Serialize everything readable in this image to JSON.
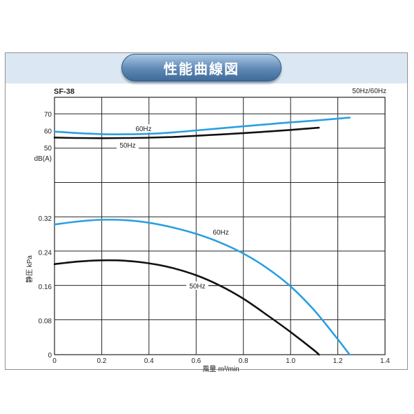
{
  "title": "性能曲線図",
  "model": "SF-38",
  "freq_note": "50Hz/60Hz",
  "colors": {
    "hz60": "#2a9fe0",
    "hz50": "#111111",
    "grid": "#222222",
    "pill": "#5e88b4",
    "band": "#dbe8f4"
  },
  "chart_data": [
    {
      "type": "line",
      "name_panel": "noise",
      "ylabel": "dB(A)",
      "yticks": [
        "70",
        "60",
        "50"
      ],
      "ylim": [
        50,
        70
      ],
      "xlim": [
        0,
        1.4
      ],
      "series": [
        {
          "name": "60Hz",
          "color": "#2a9fe0",
          "x": [
            0,
            0.1,
            0.2,
            0.3,
            0.4,
            0.5,
            0.6,
            0.7,
            0.8,
            0.9,
            1.0,
            1.1,
            1.2,
            1.25
          ],
          "y": [
            59.5,
            58.6,
            58.0,
            57.9,
            58.2,
            59.0,
            60.2,
            61.4,
            62.6,
            63.8,
            65.0,
            66.0,
            67.2,
            67.8
          ]
        },
        {
          "name": "50Hz",
          "color": "#111111",
          "x": [
            0,
            0.1,
            0.2,
            0.3,
            0.4,
            0.5,
            0.6,
            0.7,
            0.8,
            0.9,
            1.0,
            1.12
          ],
          "y": [
            56.0,
            55.7,
            55.6,
            55.7,
            55.9,
            56.3,
            57.0,
            57.8,
            58.6,
            59.5,
            60.5,
            61.8
          ]
        }
      ]
    },
    {
      "type": "line",
      "name_panel": "pressure",
      "ylabel": "静圧 kPa",
      "xlabel": "風量 m³/min",
      "yticks": [
        "0.32",
        "0.24",
        "0.16",
        "0.08",
        "0"
      ],
      "xticks": [
        "0",
        "0.2",
        "0.4",
        "0.6",
        "0.8",
        "1.0",
        "1.2",
        "1.4"
      ],
      "ylim": [
        0,
        0.32
      ],
      "xlim": [
        0,
        1.4
      ],
      "series": [
        {
          "name": "60Hz",
          "color": "#2a9fe0",
          "x": [
            0,
            0.1,
            0.2,
            0.3,
            0.4,
            0.5,
            0.6,
            0.7,
            0.8,
            0.9,
            1.0,
            1.1,
            1.2,
            1.25
          ],
          "y": [
            0.305,
            0.312,
            0.316,
            0.315,
            0.309,
            0.298,
            0.283,
            0.263,
            0.237,
            0.203,
            0.16,
            0.104,
            0.036,
            0.0
          ]
        },
        {
          "name": "50Hz",
          "color": "#111111",
          "x": [
            0,
            0.1,
            0.2,
            0.3,
            0.4,
            0.5,
            0.6,
            0.7,
            0.8,
            0.9,
            1.0,
            1.1,
            1.12
          ],
          "y": [
            0.212,
            0.218,
            0.221,
            0.22,
            0.214,
            0.203,
            0.186,
            0.162,
            0.131,
            0.093,
            0.053,
            0.01,
            0.0
          ]
        }
      ]
    }
  ]
}
